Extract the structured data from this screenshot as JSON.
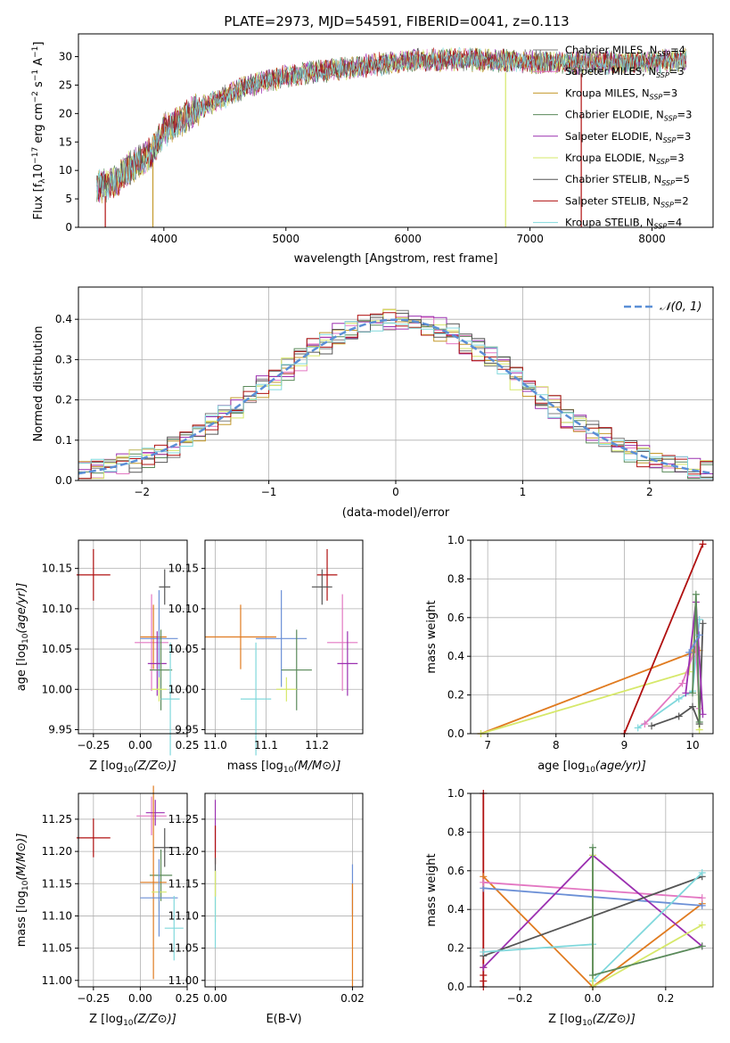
{
  "figure_title": "PLATE=2973, MJD=54591, FIBERID=0041, z=0.113",
  "colors": {
    "chabrier_miles": "#7f7f7f",
    "salpeter_miles": "#e377c2",
    "kroupa_miles": "#c49a2c",
    "chabrier_elodie": "#5a8a5a",
    "salpeter_elodie": "#9b30b0",
    "kroupa_elodie": "#d6e86a",
    "chabrier_stelib": "#555555",
    "salpeter_stelib": "#b01010",
    "kroupa_stelib": "#80d8dc",
    "normal": "#5b8fd6",
    "orange": "#e07b20",
    "blue": "#6b8fd6"
  },
  "chart_data": [
    {
      "type": "line",
      "panel": "spectrum",
      "xlabel": "wavelength [Angstrom, rest frame]",
      "ylabel": "Flux [f_λ 10^-17 erg cm^-2 s^-1 A^-1]",
      "ylabel_parts": [
        "Flux [f",
        "λ",
        "10",
        "−17",
        " erg cm",
        "−2",
        " s",
        "−1",
        " A",
        "−1",
        "]"
      ],
      "xlim": [
        3300,
        8500
      ],
      "ylim": [
        0,
        34
      ],
      "xticks": [
        4000,
        5000,
        6000,
        7000,
        8000
      ],
      "yticks": [
        0,
        5,
        10,
        15,
        20,
        25,
        30
      ],
      "grid": false,
      "legend_position": "upper-right",
      "series": [
        {
          "name": "Chabrier MILES, N_SSP=4",
          "label": "Chabrier MILES, N",
          "sub": "SSP",
          "suffix": "=4",
          "color": "#7f7f7f"
        },
        {
          "name": "Salpeter MILES, N_SSP=3",
          "label": "Salpeter MILES, N",
          "sub": "SSP",
          "suffix": "=3",
          "color": "#e377c2"
        },
        {
          "name": "Kroupa MILES, N_SSP=3",
          "label": "Kroupa MILES, N",
          "sub": "SSP",
          "suffix": "=3",
          "color": "#c49a2c"
        },
        {
          "name": "Chabrier ELODIE, N_SSP=3",
          "label": "Chabrier ELODIE, N",
          "sub": "SSP",
          "suffix": "=3",
          "color": "#5a8a5a"
        },
        {
          "name": "Salpeter ELODIE, N_SSP=3",
          "label": "Salpeter ELODIE, N",
          "sub": "SSP",
          "suffix": "=3",
          "color": "#9b30b0"
        },
        {
          "name": "Kroupa ELODIE, N_SSP=3",
          "label": "Kroupa ELODIE, N",
          "sub": "SSP",
          "suffix": "=3",
          "color": "#d6e86a"
        },
        {
          "name": "Chabrier STELIB, N_SSP=5",
          "label": "Chabrier STELIB, N",
          "sub": "SSP",
          "suffix": "=5",
          "color": "#555555"
        },
        {
          "name": "Salpeter STELIB, N_SSP=2",
          "label": "Salpeter STELIB, N",
          "sub": "SSP",
          "suffix": "=2",
          "color": "#b01010"
        },
        {
          "name": "Kroupa STELIB, N_SSP=4",
          "label": "Kroupa STELIB, N",
          "sub": "SSP",
          "suffix": "=4",
          "color": "#80d8dc"
        }
      ],
      "continuum": {
        "x": [
          3450,
          3600,
          3750,
          3900,
          4000,
          4150,
          4300,
          4500,
          4700,
          4900,
          5100,
          5300,
          5500,
          5700,
          5900,
          6100,
          6300,
          6500,
          6700,
          6900,
          7100,
          7300,
          7500,
          7700,
          7900,
          8100,
          8280
        ],
        "y": [
          7,
          8,
          11,
          13,
          17,
          19,
          21,
          23,
          25,
          26,
          27,
          27.5,
          28,
          28.5,
          29,
          29.5,
          29.5,
          29.5,
          29.3,
          29.2,
          29,
          29,
          29,
          29,
          29,
          29.2,
          29.5
        ]
      },
      "dips": [
        {
          "x": 3520,
          "y": 0,
          "color": "#b01010"
        },
        {
          "x": 3910,
          "y": 0,
          "color": "#c49a2c"
        },
        {
          "x": 6800,
          "y": 0,
          "color": "#d6e86a"
        },
        {
          "x": 7420,
          "y": 0,
          "color": "#b01010"
        }
      ]
    },
    {
      "type": "line",
      "panel": "residuals",
      "xlabel": "(data-model)/error",
      "ylabel": "Normed distribution",
      "xlim": [
        -2.5,
        2.5
      ],
      "ylim": [
        0,
        0.48
      ],
      "xticks": [
        -2,
        -1,
        0,
        1,
        2
      ],
      "xtick_labels": [
        "−2",
        "−1",
        "0",
        "1",
        "2"
      ],
      "yticks": [
        0.0,
        0.1,
        0.2,
        0.3,
        0.4
      ],
      "ytick_labels": [
        "0.0",
        "0.1",
        "0.2",
        "0.3",
        "0.4"
      ],
      "grid": true,
      "legend_position": "upper-right",
      "legend_label": "𝒩(0, 1)",
      "normal": {
        "mean": 0,
        "std": 1,
        "style": "dashed"
      },
      "histogram": {
        "bin_width": 0.1,
        "range": [
          -2.5,
          2.5
        ],
        "series_count": 9
      }
    },
    {
      "type": "scatter",
      "panel": "age-vs-Z",
      "xlabel": "Z [log10(Z/Z⊙)]",
      "ylabel": "age [log10(age/yr)]",
      "xlim": [
        -0.33,
        0.25
      ],
      "ylim": [
        9.945,
        10.185
      ],
      "xticks": [
        -0.25,
        0.0,
        0.25
      ],
      "xtick_labels": [
        "−0.25",
        "0.00",
        "0.25"
      ],
      "yticks": [
        9.95,
        10.0,
        10.05,
        10.1,
        10.15
      ],
      "ytick_labels": [
        "9.95",
        "10.00",
        "10.05",
        "10.10",
        "10.15"
      ],
      "grid": true,
      "points": [
        {
          "x": -0.25,
          "xerr": 0.09,
          "y": 10.142,
          "yerr": 0.032,
          "color": "#b01010"
        },
        {
          "x": 0.13,
          "xerr": 0.03,
          "y": 10.127,
          "yerr": 0.022,
          "color": "#555555"
        },
        {
          "x": 0.06,
          "xerr": 0.09,
          "y": 10.058,
          "yerr": 0.06,
          "color": "#e377c2"
        },
        {
          "x": 0.07,
          "xerr": 0.07,
          "y": 10.065,
          "yerr": 0.04,
          "color": "#e07b20"
        },
        {
          "x": 0.1,
          "xerr": 0.1,
          "y": 10.063,
          "yerr": 0.06,
          "color": "#6b8fd6"
        },
        {
          "x": 0.09,
          "xerr": 0.05,
          "y": 10.032,
          "yerr": 0.04,
          "color": "#9b30b0"
        },
        {
          "x": 0.11,
          "xerr": 0.06,
          "y": 10.024,
          "yerr": 0.05,
          "color": "#5a8a5a"
        },
        {
          "x": 0.1,
          "xerr": 0.04,
          "y": 10.0,
          "yerr": 0.015,
          "color": "#d6e86a"
        },
        {
          "x": 0.16,
          "xerr": 0.05,
          "y": 9.988,
          "yerr": 0.07,
          "color": "#80d8dc"
        }
      ]
    },
    {
      "type": "scatter",
      "panel": "age-vs-mass",
      "xlabel": "mass [log10(M/M⊙)]",
      "xlim": [
        10.98,
        11.29
      ],
      "ylim": [
        9.945,
        10.185
      ],
      "xticks": [
        11.0,
        11.1,
        11.2
      ],
      "xtick_labels": [
        "11.0",
        "11.1",
        "11.2"
      ],
      "yticks": [
        9.95,
        10.0,
        10.05,
        10.1,
        10.15
      ],
      "ytick_labels": [
        "9.95",
        "10.00",
        "10.05",
        "10.10",
        "10.15"
      ],
      "grid": true,
      "points": [
        {
          "x": 11.22,
          "xerr": 0.02,
          "y": 10.142,
          "yerr": 0.032,
          "color": "#b01010"
        },
        {
          "x": 11.21,
          "xerr": 0.02,
          "y": 10.127,
          "yerr": 0.022,
          "color": "#555555"
        },
        {
          "x": 11.25,
          "xerr": 0.03,
          "y": 10.058,
          "yerr": 0.06,
          "color": "#e377c2"
        },
        {
          "x": 11.05,
          "xerr": 0.07,
          "y": 10.065,
          "yerr": 0.04,
          "color": "#e07b20"
        },
        {
          "x": 11.13,
          "xerr": 0.05,
          "y": 10.063,
          "yerr": 0.06,
          "color": "#6b8fd6"
        },
        {
          "x": 11.26,
          "xerr": 0.02,
          "y": 10.032,
          "yerr": 0.04,
          "color": "#9b30b0"
        },
        {
          "x": 11.16,
          "xerr": 0.03,
          "y": 10.024,
          "yerr": 0.05,
          "color": "#5a8a5a"
        },
        {
          "x": 11.14,
          "xerr": 0.02,
          "y": 10.0,
          "yerr": 0.015,
          "color": "#d6e86a"
        },
        {
          "x": 11.08,
          "xerr": 0.03,
          "y": 9.988,
          "yerr": 0.07,
          "color": "#80d8dc"
        }
      ]
    },
    {
      "type": "line",
      "panel": "weight-vs-age",
      "xlabel": "age [log10(age/yr)]",
      "ylabel": "mass weight",
      "xlim": [
        6.75,
        10.3
      ],
      "ylim": [
        0,
        1
      ],
      "xticks": [
        7,
        8,
        9,
        10
      ],
      "yticks": [
        0.0,
        0.2,
        0.4,
        0.6,
        0.8,
        1.0
      ],
      "ytick_labels": [
        "0.0",
        "0.2",
        "0.4",
        "0.6",
        "0.8",
        "1.0"
      ],
      "grid": true,
      "series": [
        {
          "color": "#e07b20",
          "x": [
            6.9,
            10.0,
            10.1
          ],
          "y": [
            0.0,
            0.42,
            0.43
          ]
        },
        {
          "color": "#d6e86a",
          "x": [
            6.9,
            9.95,
            10.05,
            10.1
          ],
          "y": [
            0.0,
            0.32,
            0.68,
            0.02
          ]
        },
        {
          "color": "#b01010",
          "x": [
            9.0,
            10.15
          ],
          "y": [
            0.0,
            0.98
          ]
        },
        {
          "color": "#555555",
          "x": [
            9.4,
            9.8,
            10.0,
            10.1,
            10.15
          ],
          "y": [
            0.04,
            0.09,
            0.14,
            0.05,
            0.57
          ]
        },
        {
          "color": "#80d8dc",
          "x": [
            9.2,
            9.8,
            10.0,
            10.1
          ],
          "y": [
            0.03,
            0.18,
            0.22,
            0.59
          ]
        },
        {
          "color": "#e377c2",
          "x": [
            9.3,
            9.85,
            10.05,
            10.1
          ],
          "y": [
            0.05,
            0.26,
            0.45,
            0.13
          ]
        },
        {
          "color": "#9b30b0",
          "x": [
            9.9,
            10.05,
            10.15
          ],
          "y": [
            0.21,
            0.68,
            0.1
          ]
        },
        {
          "color": "#5a8a5a",
          "x": [
            10.0,
            10.05,
            10.1
          ],
          "y": [
            0.21,
            0.72,
            0.06
          ]
        },
        {
          "color": "#6b8fd6",
          "x": [
            9.95,
            10.1
          ],
          "y": [
            0.42,
            0.51
          ]
        }
      ]
    },
    {
      "type": "scatter",
      "panel": "mass-vs-Z",
      "xlabel": "Z [log10(Z/Z⊙)]",
      "ylabel": "mass [log10(M/M⊙)]",
      "xlim": [
        -0.33,
        0.25
      ],
      "ylim": [
        10.99,
        11.29
      ],
      "xticks": [
        -0.25,
        0.0,
        0.25
      ],
      "xtick_labels": [
        "−0.25",
        "0.00",
        "0.25"
      ],
      "yticks": [
        11.0,
        11.05,
        11.1,
        11.15,
        11.2,
        11.25
      ],
      "ytick_labels": [
        "11.00",
        "11.05",
        "11.10",
        "11.15",
        "11.20",
        "11.25"
      ],
      "grid": true,
      "points": [
        {
          "x": -0.25,
          "xerr": 0.09,
          "y": 11.221,
          "yerr": 0.03,
          "color": "#b01010"
        },
        {
          "x": 0.06,
          "xerr": 0.08,
          "y": 11.255,
          "yerr": 0.03,
          "color": "#e377c2"
        },
        {
          "x": 0.08,
          "xerr": 0.05,
          "y": 11.26,
          "yerr": 0.02,
          "color": "#9b30b0"
        },
        {
          "x": 0.13,
          "xerr": 0.06,
          "y": 11.206,
          "yerr": 0.03,
          "color": "#555555"
        },
        {
          "x": 0.11,
          "xerr": 0.06,
          "y": 11.163,
          "yerr": 0.04,
          "color": "#5a8a5a"
        },
        {
          "x": 0.07,
          "xerr": 0.07,
          "y": 11.152,
          "yerr": 0.15,
          "color": "#e07b20"
        },
        {
          "x": 0.1,
          "xerr": 0.04,
          "y": 11.137,
          "yerr": 0.03,
          "color": "#d6e86a"
        },
        {
          "x": 0.1,
          "xerr": 0.1,
          "y": 11.128,
          "yerr": 0.06,
          "color": "#6b8fd6"
        },
        {
          "x": 0.18,
          "xerr": 0.05,
          "y": 11.081,
          "yerr": 0.05,
          "color": "#80d8dc"
        }
      ]
    },
    {
      "type": "scatter",
      "panel": "mass-vs-ebv",
      "xlabel": "E(B-V)",
      "xlim": [
        -0.0015,
        0.0215
      ],
      "ylim": [
        10.99,
        11.29
      ],
      "xticks": [
        0.0,
        0.02
      ],
      "xtick_labels": [
        "0.00",
        "0.02"
      ],
      "yticks": [
        11.0,
        11.05,
        11.1,
        11.15,
        11.2,
        11.25
      ],
      "ytick_labels": [
        "11.00",
        "11.05",
        "11.10",
        "11.15",
        "11.20",
        "11.25"
      ],
      "grid": true,
      "points": [
        {
          "x": 0.0,
          "xerr": 0,
          "y": 11.24,
          "yerr": 0.04,
          "color": "#9b30b0"
        },
        {
          "x": 0.0,
          "xerr": 0,
          "y": 11.21,
          "yerr": 0.03,
          "color": "#b01010"
        },
        {
          "x": 0.0,
          "xerr": 0,
          "y": 11.16,
          "yerr": 0.03,
          "color": "#555555"
        },
        {
          "x": 0.0,
          "xerr": 0,
          "y": 11.13,
          "yerr": 0.04,
          "color": "#d6e86a"
        },
        {
          "x": 0.0,
          "xerr": 0,
          "y": 11.09,
          "yerr": 0.04,
          "color": "#80d8dc"
        },
        {
          "x": 0.02,
          "xerr": 0,
          "y": 11.14,
          "yerr": 0.04,
          "color": "#6b8fd6"
        },
        {
          "x": 0.02,
          "xerr": 0,
          "y": 11.07,
          "yerr": 0.08,
          "color": "#e07b20"
        }
      ]
    },
    {
      "type": "line",
      "panel": "weight-vs-Z",
      "xlabel": "Z [log10(Z/Z⊙)]",
      "ylabel": "mass weight",
      "xlim": [
        -0.335,
        0.33
      ],
      "ylim": [
        0,
        1
      ],
      "xticks": [
        -0.2,
        0.0,
        0.2
      ],
      "xtick_labels": [
        "−0.2",
        "0.0",
        "0.2"
      ],
      "yticks": [
        0.0,
        0.2,
        0.4,
        0.6,
        0.8,
        1.0
      ],
      "ytick_labels": [
        "0.0",
        "0.2",
        "0.4",
        "0.6",
        "0.8",
        "1.0"
      ],
      "grid": true,
      "series": [
        {
          "color": "#b01010",
          "x": [
            -0.3,
            -0.3,
            -0.3,
            -0.3,
            -0.3
          ],
          "y": [
            0.0,
            0.03,
            0.06,
            0.1,
            1.0
          ]
        },
        {
          "color": "#e07b20",
          "x": [
            -0.3,
            0.0,
            0.3
          ],
          "y": [
            0.57,
            0.0,
            0.43
          ]
        },
        {
          "color": "#6b8fd6",
          "x": [
            -0.3,
            0.3
          ],
          "y": [
            0.51,
            0.42
          ]
        },
        {
          "color": "#e377c2",
          "x": [
            -0.3,
            0.3
          ],
          "y": [
            0.54,
            0.46
          ]
        },
        {
          "color": "#9b30b0",
          "x": [
            -0.3,
            0.0,
            0.3
          ],
          "y": [
            0.1,
            0.68,
            0.21
          ]
        },
        {
          "color": "#555555",
          "x": [
            -0.3,
            0.3
          ],
          "y": [
            0.16,
            0.57
          ]
        },
        {
          "color": "#80d8dc",
          "x": [
            -0.3,
            0.0,
            0.0,
            0.3
          ],
          "y": [
            0.18,
            0.22,
            0.03,
            0.59
          ]
        },
        {
          "color": "#d6e86a",
          "x": [
            0.0,
            0.0,
            0.3
          ],
          "y": [
            0.68,
            0.0,
            0.32
          ]
        },
        {
          "color": "#5a8a5a",
          "x": [
            0.0,
            0.0,
            0.3
          ],
          "y": [
            0.72,
            0.06,
            0.21
          ]
        }
      ]
    }
  ]
}
